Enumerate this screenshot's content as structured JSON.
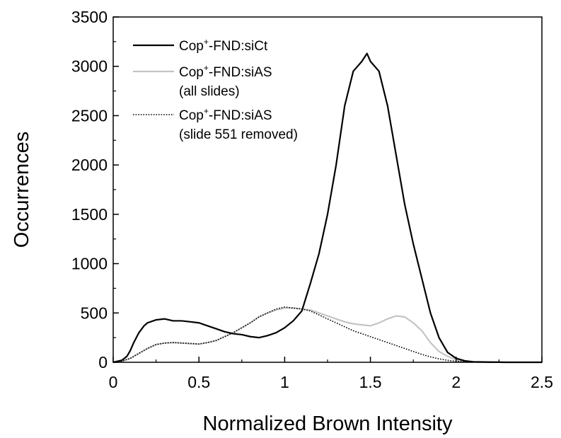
{
  "chart_data": {
    "type": "line",
    "title": "",
    "xlabel": "Normalized Brown Intensity",
    "ylabel": "Occurrences",
    "xlim": [
      0,
      2.5
    ],
    "ylim": [
      0,
      3500
    ],
    "xticks": [
      0,
      0.5,
      1,
      1.5,
      2,
      2.5
    ],
    "xtick_labels": [
      "0",
      "0.5",
      "1",
      "1.5",
      "2",
      "2.5"
    ],
    "yticks": [
      0,
      500,
      1000,
      1500,
      2000,
      2500,
      3000,
      3500
    ],
    "ytick_labels": [
      "0",
      "500",
      "1000",
      "1500",
      "2000",
      "2500",
      "3000",
      "3500"
    ],
    "grid": false,
    "legend_position": "top-left",
    "series": [
      {
        "name_prefix": "Cop",
        "name_sup": "+",
        "name_suffix": "-FND:siCt",
        "name_line2": "",
        "color": "#000000",
        "style": "solid",
        "x": [
          0.0,
          0.05,
          0.08,
          0.1,
          0.12,
          0.15,
          0.18,
          0.2,
          0.25,
          0.3,
          0.35,
          0.4,
          0.45,
          0.5,
          0.55,
          0.6,
          0.65,
          0.7,
          0.75,
          0.8,
          0.85,
          0.9,
          0.95,
          1.0,
          1.05,
          1.1,
          1.15,
          1.2,
          1.25,
          1.3,
          1.35,
          1.4,
          1.45,
          1.48,
          1.5,
          1.55,
          1.6,
          1.65,
          1.7,
          1.75,
          1.8,
          1.85,
          1.9,
          1.95,
          2.0,
          2.05,
          2.1,
          2.2,
          2.3,
          2.5
        ],
        "y": [
          0,
          20,
          60,
          120,
          200,
          300,
          370,
          400,
          430,
          440,
          420,
          420,
          410,
          400,
          370,
          340,
          310,
          290,
          280,
          260,
          250,
          270,
          300,
          350,
          420,
          520,
          800,
          1100,
          1500,
          2000,
          2600,
          2950,
          3050,
          3130,
          3050,
          2950,
          2600,
          2100,
          1600,
          1200,
          850,
          500,
          250,
          100,
          40,
          15,
          5,
          2,
          0,
          0
        ]
      },
      {
        "name_prefix": "Cop",
        "name_sup": "+",
        "name_suffix": "-FND:siAS",
        "name_line2": "(all slides)",
        "color": "#c4c4c4",
        "style": "solid",
        "x": [
          0.0,
          0.05,
          0.1,
          0.15,
          0.2,
          0.25,
          0.3,
          0.35,
          0.4,
          0.45,
          0.5,
          0.55,
          0.6,
          0.65,
          0.7,
          0.75,
          0.8,
          0.85,
          0.9,
          0.95,
          1.0,
          1.05,
          1.1,
          1.15,
          1.2,
          1.25,
          1.3,
          1.35,
          1.4,
          1.45,
          1.5,
          1.55,
          1.6,
          1.65,
          1.7,
          1.75,
          1.8,
          1.85,
          1.9,
          1.95,
          2.0,
          2.05,
          2.1,
          2.2,
          2.3,
          2.5
        ],
        "y": [
          0,
          10,
          40,
          90,
          140,
          180,
          195,
          200,
          195,
          190,
          185,
          200,
          220,
          260,
          300,
          350,
          400,
          460,
          500,
          530,
          550,
          550,
          540,
          530,
          500,
          470,
          440,
          410,
          390,
          380,
          370,
          400,
          440,
          470,
          460,
          400,
          320,
          200,
          110,
          60,
          25,
          10,
          5,
          2,
          0,
          0
        ]
      },
      {
        "name_prefix": "Cop",
        "name_sup": "+",
        "name_suffix": "-FND:siAS",
        "name_line2": "(slide 551 removed)",
        "color": "#000000",
        "style": "dotted",
        "x": [
          0.0,
          0.05,
          0.1,
          0.15,
          0.2,
          0.25,
          0.3,
          0.35,
          0.4,
          0.45,
          0.5,
          0.55,
          0.6,
          0.65,
          0.7,
          0.75,
          0.8,
          0.85,
          0.9,
          0.95,
          1.0,
          1.05,
          1.1,
          1.15,
          1.2,
          1.25,
          1.3,
          1.35,
          1.4,
          1.45,
          1.5,
          1.55,
          1.6,
          1.65,
          1.7,
          1.75,
          1.8,
          1.85,
          1.9,
          1.95,
          2.0,
          2.05,
          2.1,
          2.2,
          2.3,
          2.5
        ],
        "y": [
          0,
          10,
          40,
          90,
          140,
          180,
          195,
          200,
          195,
          190,
          185,
          200,
          220,
          260,
          300,
          350,
          400,
          460,
          500,
          540,
          560,
          550,
          540,
          520,
          480,
          440,
          400,
          360,
          320,
          290,
          260,
          230,
          200,
          170,
          140,
          110,
          80,
          55,
          35,
          20,
          10,
          5,
          2,
          0,
          0,
          0
        ]
      }
    ]
  }
}
